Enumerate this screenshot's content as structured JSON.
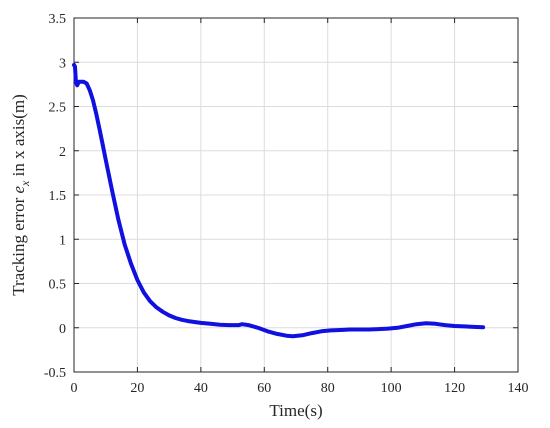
{
  "chart_data": {
    "type": "line",
    "title": "",
    "xlabel": "Time(s)",
    "ylabel_parts": {
      "prefix": "Tracking error ",
      "symbol": "e",
      "subscript": "x",
      "suffix": " in x axis(m)"
    },
    "xlim": [
      0,
      140
    ],
    "ylim": [
      -0.5,
      3.5
    ],
    "xticks": [
      0,
      20,
      40,
      60,
      80,
      100,
      120,
      140
    ],
    "yticks": [
      -0.5,
      0,
      0.5,
      1,
      1.5,
      2,
      2.5,
      3,
      3.5
    ],
    "xtick_labels": [
      "0",
      "20",
      "40",
      "60",
      "80",
      "100",
      "120",
      "140"
    ],
    "ytick_labels": [
      "-0.5",
      "0",
      "0.5",
      "1",
      "1.5",
      "2",
      "2.5",
      "3",
      "3.5"
    ],
    "grid": true,
    "series": [
      {
        "color": "#1010e0",
        "x": [
          0,
          0.3,
          0.6,
          1,
          1.5,
          2.2,
          3,
          4,
          5,
          6,
          7,
          8,
          9,
          10,
          12,
          14,
          16,
          18,
          20,
          22,
          24,
          26,
          28,
          30,
          32,
          34,
          36,
          38,
          40,
          43,
          46,
          49,
          52,
          53,
          55,
          58,
          61,
          64,
          67,
          69,
          72,
          75,
          78,
          81,
          84,
          87,
          90,
          93,
          96,
          99,
          102,
          105,
          108,
          111,
          114,
          117,
          120,
          123,
          126,
          129
        ],
        "y": [
          2.97,
          2.95,
          2.78,
          2.74,
          2.78,
          2.78,
          2.78,
          2.76,
          2.68,
          2.57,
          2.42,
          2.25,
          2.08,
          1.9,
          1.55,
          1.22,
          0.94,
          0.72,
          0.54,
          0.4,
          0.3,
          0.23,
          0.18,
          0.14,
          0.11,
          0.09,
          0.075,
          0.065,
          0.055,
          0.045,
          0.035,
          0.03,
          0.03,
          0.04,
          0.03,
          0.0,
          -0.04,
          -0.07,
          -0.09,
          -0.095,
          -0.085,
          -0.06,
          -0.04,
          -0.03,
          -0.025,
          -0.02,
          -0.02,
          -0.02,
          -0.015,
          -0.01,
          0.0,
          0.02,
          0.04,
          0.05,
          0.045,
          0.03,
          0.02,
          0.015,
          0.01,
          0.005
        ]
      }
    ]
  }
}
